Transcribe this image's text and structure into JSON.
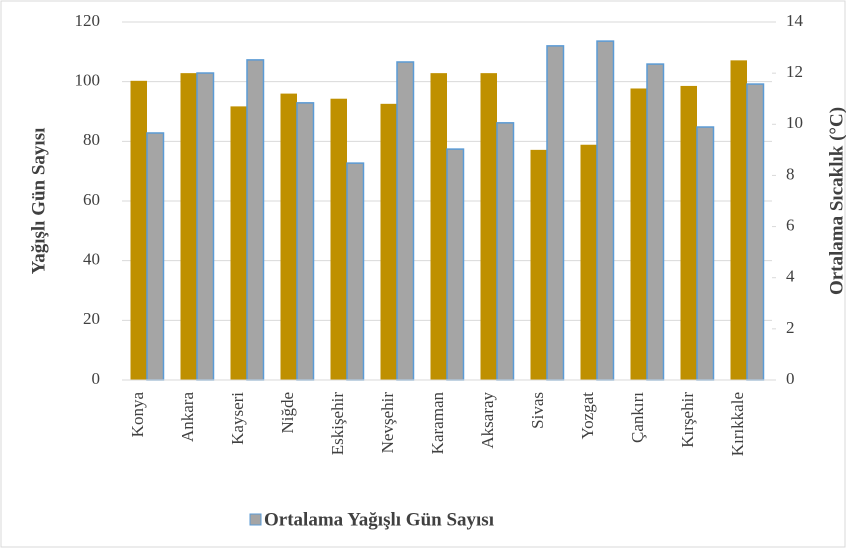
{
  "chart_data": {
    "type": "bar",
    "categories": [
      "Konya",
      "Ankara",
      "Kayseri",
      "Niğde",
      "Eskişehir",
      "Nevşehir",
      "Karaman",
      "Aksaray",
      "Sivas",
      "Yozgat",
      "Çankırı",
      "Kırşehir",
      "Kırıkkale"
    ],
    "series": [
      {
        "color": "#bf9000",
        "axis": "y2",
        "values": [
          11.7,
          12.0,
          10.7,
          11.2,
          11.0,
          10.8,
          12.0,
          12.0,
          9.0,
          9.2,
          11.4,
          11.5,
          12.5
        ]
      },
      {
        "name": "Ortalama Yağışlı Gün Sayısı",
        "color": "#a5a5a5",
        "stroke": "#5b9bd5",
        "values": [
          82.8,
          102.9,
          107.3,
          92.9,
          72.7,
          106.6,
          77.4,
          86.2,
          112,
          113.6,
          105.9,
          84.8,
          99.2
        ]
      }
    ],
    "ylabel": "Yağışlı Gün Sayısı",
    "y2label": "Ortalama Sıcaklık (°C)",
    "ylim": [
      0,
      120
    ],
    "yticks": [
      0,
      20,
      40,
      60,
      80,
      100,
      120
    ],
    "y2lim": [
      0,
      14
    ],
    "y2ticks": [
      0,
      2,
      4,
      6,
      8,
      10,
      12,
      14
    ],
    "grid": true,
    "legend": "bottom"
  }
}
